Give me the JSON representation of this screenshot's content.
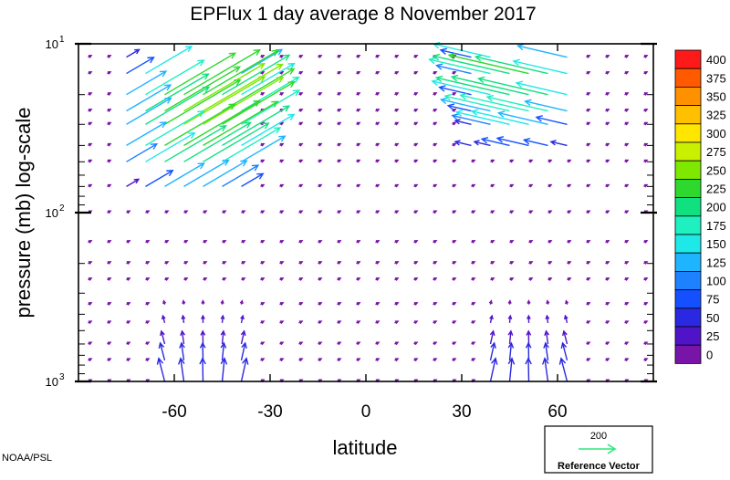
{
  "chart_data": {
    "type": "vector-field",
    "title": "EPFlux  1 day average  8 November 2017",
    "xlabel": "latitude",
    "ylabel": "pressure (mb)  log-scale",
    "xlim": [
      -90,
      90
    ],
    "ylim": [
      1000,
      10
    ],
    "y_scale": "log",
    "x_ticks": [
      -60,
      -30,
      0,
      30,
      60
    ],
    "x_tick_labels": [
      "-60",
      "-30",
      "0",
      "30",
      "60"
    ],
    "y_ticks": [
      10,
      100,
      1000
    ],
    "y_tick_labels": [
      {
        "base": "10",
        "exp": "1"
      },
      {
        "base": "10",
        "exp": "2"
      },
      {
        "base": "10",
        "exp": "3"
      }
    ],
    "colorbar": {
      "levels": [
        "400",
        "375",
        "350",
        "325",
        "300",
        "275",
        "250",
        "225",
        "200",
        "175",
        "150",
        "125",
        "100",
        "75",
        "50",
        "25",
        "0"
      ],
      "colors": [
        "#ff1a1a",
        "#ff5a00",
        "#ff9100",
        "#ffc000",
        "#ffe600",
        "#c8f000",
        "#7ee800",
        "#2ed82e",
        "#10e080",
        "#1ef0c0",
        "#1ee8e8",
        "#1eb4ff",
        "#1e82ff",
        "#1450ff",
        "#2a28e0",
        "#5014c8",
        "#7814a8"
      ]
    },
    "reference_vector": {
      "value": "200",
      "label": "Reference Vector",
      "color": "#2ee87a"
    },
    "credit": "NOAA/PSL",
    "grid": false,
    "legend_position": "bottom-right",
    "vector_groups": [
      {
        "region": "southern hemisphere upper stratosphere",
        "lat_range": [
          -75,
          -35
        ],
        "p_range": [
          12,
          70
        ],
        "direction": "up-equatorward",
        "max_magnitude": 250
      },
      {
        "region": "northern hemisphere upper stratosphere",
        "lat_range": [
          32,
          65
        ],
        "p_range": [
          12,
          45
        ],
        "direction": "equatorward",
        "max_magnitude": 220
      },
      {
        "region": "southern hemisphere lower troposphere",
        "lat_range": [
          -65,
          -35
        ],
        "p_range": [
          350,
          1000
        ],
        "direction": "upward",
        "max_magnitude": 60
      },
      {
        "region": "northern hemisphere lower troposphere",
        "lat_range": [
          35,
          65
        ],
        "p_range": [
          350,
          1000
        ],
        "direction": "upward",
        "max_magnitude": 60
      }
    ]
  }
}
